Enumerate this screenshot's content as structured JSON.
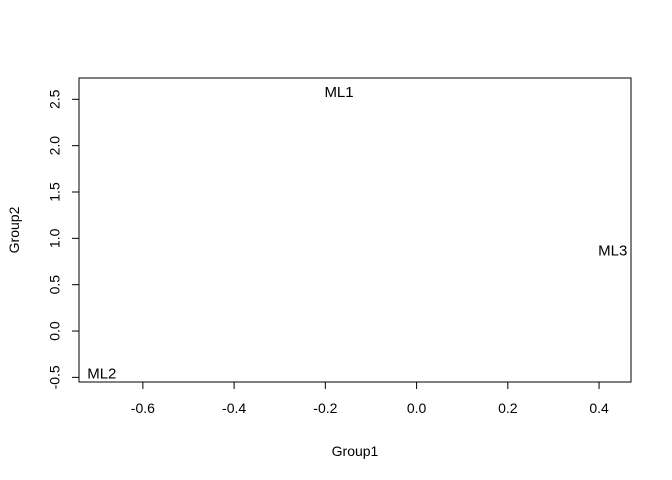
{
  "chart_data": {
    "type": "scatter",
    "xlabel": "Group1",
    "ylabel": "Group2",
    "xlim": [
      -0.74,
      0.47
    ],
    "ylim": [
      -0.55,
      2.73
    ],
    "x_ticks": [
      -0.6,
      -0.4,
      -0.2,
      0.0,
      0.2,
      0.4
    ],
    "x_tick_labels": [
      "-0.6",
      "-0.4",
      "-0.2",
      "0.0",
      "0.2",
      "0.4"
    ],
    "y_ticks": [
      -0.5,
      0.0,
      0.5,
      1.0,
      1.5,
      2.0,
      2.5
    ],
    "y_tick_labels": [
      "-0.5",
      "0.0",
      "0.5",
      "1.0",
      "1.5",
      "2.0",
      "2.5"
    ],
    "grid": false,
    "points": [
      {
        "label": "ML1",
        "x": -0.17,
        "y": 2.57
      },
      {
        "label": "ML2",
        "x": -0.69,
        "y": -0.47
      },
      {
        "label": "ML3",
        "x": 0.43,
        "y": 0.86
      }
    ]
  }
}
